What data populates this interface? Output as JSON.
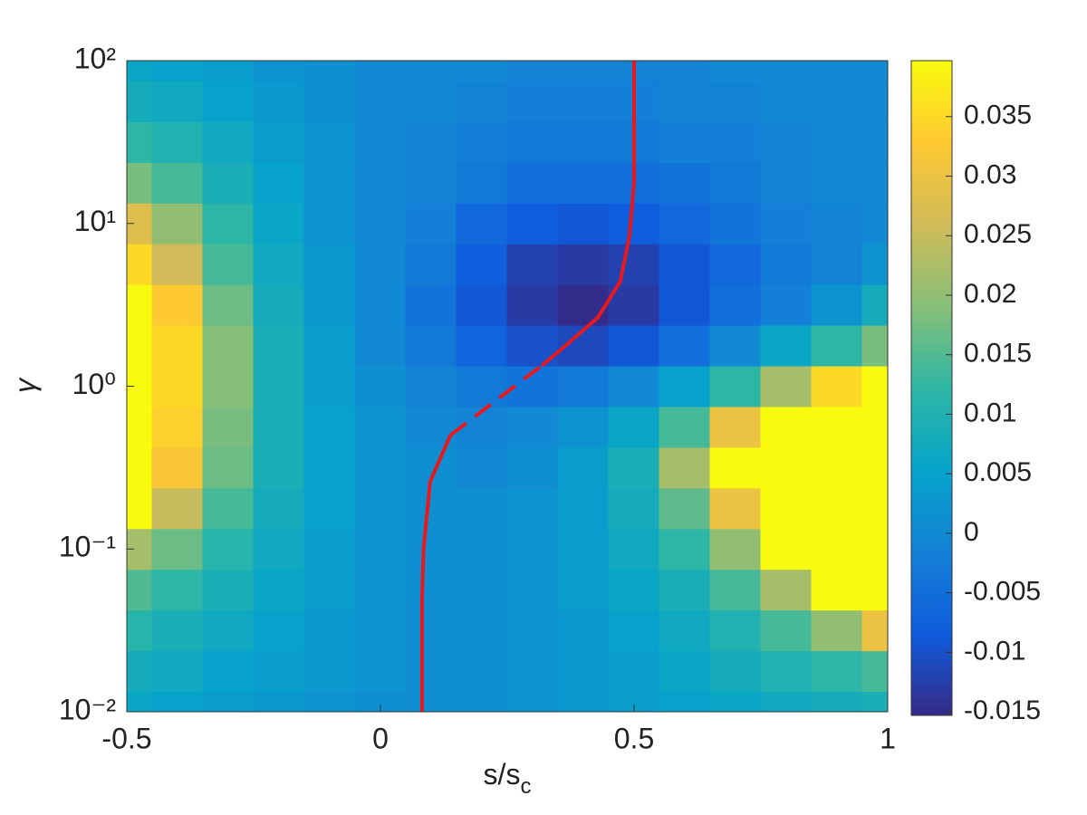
{
  "chart_data": {
    "type": "contour",
    "xlabel": "s/s",
    "xlabel_sub": "c",
    "ylabel": "γ",
    "xlim": [
      -0.5,
      1
    ],
    "xticks": [
      -0.5,
      0,
      0.5,
      1
    ],
    "ylim": [
      0.01,
      100
    ],
    "yscale": "log",
    "yticks": [
      {
        "value": 0.01,
        "label": "10⁻²"
      },
      {
        "value": 0.1,
        "label": "10⁻¹"
      },
      {
        "value": 1,
        "label": "10⁰"
      },
      {
        "value": 10,
        "label": "10¹"
      },
      {
        "value": 100,
        "label": "10²"
      }
    ],
    "clim": [
      -0.0153,
      0.0397
    ],
    "cticks": [
      -0.015,
      -0.01,
      -0.005,
      0,
      0.005,
      0.01,
      0.015,
      0.02,
      0.025,
      0.03,
      0.035
    ],
    "colormap": [
      "#352a87",
      "#0f5cdd",
      "#1481d6",
      "#06a4ca",
      "#2eb7a4",
      "#87bf77",
      "#d1bb59",
      "#fec832",
      "#f9fb0e"
    ],
    "x": [
      -0.5,
      -0.4,
      -0.3,
      -0.2,
      -0.1,
      0,
      0.1,
      0.2,
      0.3,
      0.4,
      0.5,
      0.6,
      0.7,
      0.8,
      0.9,
      1
    ],
    "y": [
      0.01,
      0.01778,
      0.03162,
      0.05623,
      0.1,
      0.1778,
      0.3162,
      0.5623,
      1,
      1.778,
      3.162,
      5.623,
      10,
      17.78,
      31.62,
      56.23,
      100
    ],
    "z": [
      [
        0.006,
        0.005,
        0.004,
        0.003,
        0.002,
        0.001,
        0.001,
        0.001,
        0.002,
        0.003,
        0.004,
        0.005,
        0.006,
        0.007,
        0.008,
        0.009
      ],
      [
        0.008,
        0.007,
        0.005,
        0.004,
        0.003,
        0.002,
        0.001,
        0.001,
        0.002,
        0.003,
        0.004,
        0.006,
        0.008,
        0.01,
        0.012,
        0.014
      ],
      [
        0.011,
        0.009,
        0.007,
        0.005,
        0.003,
        0.002,
        0.001,
        0.001,
        0.002,
        0.003,
        0.005,
        0.007,
        0.01,
        0.014,
        0.02,
        0.03
      ],
      [
        0.015,
        0.012,
        0.009,
        0.006,
        0.004,
        0.002,
        0.001,
        0.001,
        0.002,
        0.004,
        0.006,
        0.009,
        0.014,
        0.022,
        0.04,
        0.04
      ],
      [
        0.022,
        0.017,
        0.011,
        0.007,
        0.004,
        0.002,
        0.001,
        0.001,
        0.002,
        0.004,
        0.007,
        0.012,
        0.02,
        0.04,
        0.04,
        0.04
      ],
      [
        0.04,
        0.025,
        0.014,
        0.008,
        0.005,
        0.002,
        0.001,
        0.001,
        0.002,
        0.004,
        0.008,
        0.016,
        0.03,
        0.04,
        0.04,
        0.04
      ],
      [
        0.04,
        0.032,
        0.017,
        0.009,
        0.005,
        0.002,
        0.001,
        0.0,
        0.001,
        0.004,
        0.009,
        0.022,
        0.04,
        0.04,
        0.04,
        0.04
      ],
      [
        0.04,
        0.034,
        0.018,
        0.009,
        0.005,
        0.002,
        0.0,
        -0.001,
        0.0,
        0.002,
        0.006,
        0.014,
        0.03,
        0.04,
        0.04,
        0.04
      ],
      [
        0.04,
        0.035,
        0.019,
        0.009,
        0.004,
        0.001,
        -0.001,
        -0.003,
        -0.004,
        -0.003,
        0.0,
        0.005,
        0.012,
        0.022,
        0.035,
        0.04
      ],
      [
        0.04,
        0.035,
        0.019,
        0.009,
        0.004,
        0.0,
        -0.003,
        -0.007,
        -0.01,
        -0.011,
        -0.009,
        -0.005,
        0.0,
        0.006,
        0.012,
        0.018
      ],
      [
        0.04,
        0.033,
        0.017,
        0.008,
        0.003,
        0.0,
        -0.004,
        -0.009,
        -0.013,
        -0.015,
        -0.013,
        -0.009,
        -0.005,
        -0.002,
        0.002,
        0.008
      ],
      [
        0.035,
        0.026,
        0.014,
        0.007,
        0.003,
        0.0,
        -0.003,
        -0.008,
        -0.012,
        -0.013,
        -0.012,
        -0.009,
        -0.006,
        -0.003,
        -0.001,
        0.002
      ],
      [
        0.028,
        0.02,
        0.012,
        0.006,
        0.002,
        0.0,
        -0.002,
        -0.006,
        -0.008,
        -0.009,
        -0.008,
        -0.006,
        -0.004,
        -0.002,
        -0.001,
        0.0
      ],
      [
        0.018,
        0.014,
        0.009,
        0.005,
        0.002,
        0.0,
        -0.001,
        -0.003,
        -0.005,
        -0.005,
        -0.005,
        -0.004,
        -0.003,
        -0.001,
        0.0,
        0.0
      ],
      [
        0.012,
        0.01,
        0.007,
        0.004,
        0.002,
        0.0,
        -0.001,
        -0.002,
        -0.003,
        -0.003,
        -0.003,
        -0.002,
        -0.002,
        -0.001,
        0.0,
        0.0
      ],
      [
        0.008,
        0.007,
        0.005,
        0.003,
        0.001,
        0.0,
        0.0,
        -0.001,
        -0.002,
        -0.002,
        -0.002,
        -0.001,
        -0.001,
        0.0,
        0.0,
        0.0
      ],
      [
        0.006,
        0.005,
        0.004,
        0.002,
        0.001,
        0.0,
        0.0,
        0.0,
        -0.001,
        -0.001,
        -0.001,
        -0.001,
        0.0,
        0.0,
        0.0,
        0.0
      ]
    ],
    "lines": [
      {
        "color": "#e8191e",
        "style": "solid",
        "x": [
          0.082,
          0.082,
          0.085,
          0.098,
          0.138
        ],
        "y": [
          0.01,
          0.05,
          0.1,
          0.26,
          0.5
        ]
      },
      {
        "color": "#e8191e",
        "style": "dashed",
        "x": [
          0.138,
          0.318
        ],
        "y": [
          0.5,
          1.34
        ]
      },
      {
        "color": "#e8191e",
        "style": "solid",
        "x": [
          0.318,
          0.357,
          0.429,
          0.473,
          0.491,
          0.5,
          0.5
        ],
        "y": [
          1.34,
          1.69,
          2.65,
          4.42,
          8.4,
          18.1,
          100
        ]
      }
    ]
  }
}
